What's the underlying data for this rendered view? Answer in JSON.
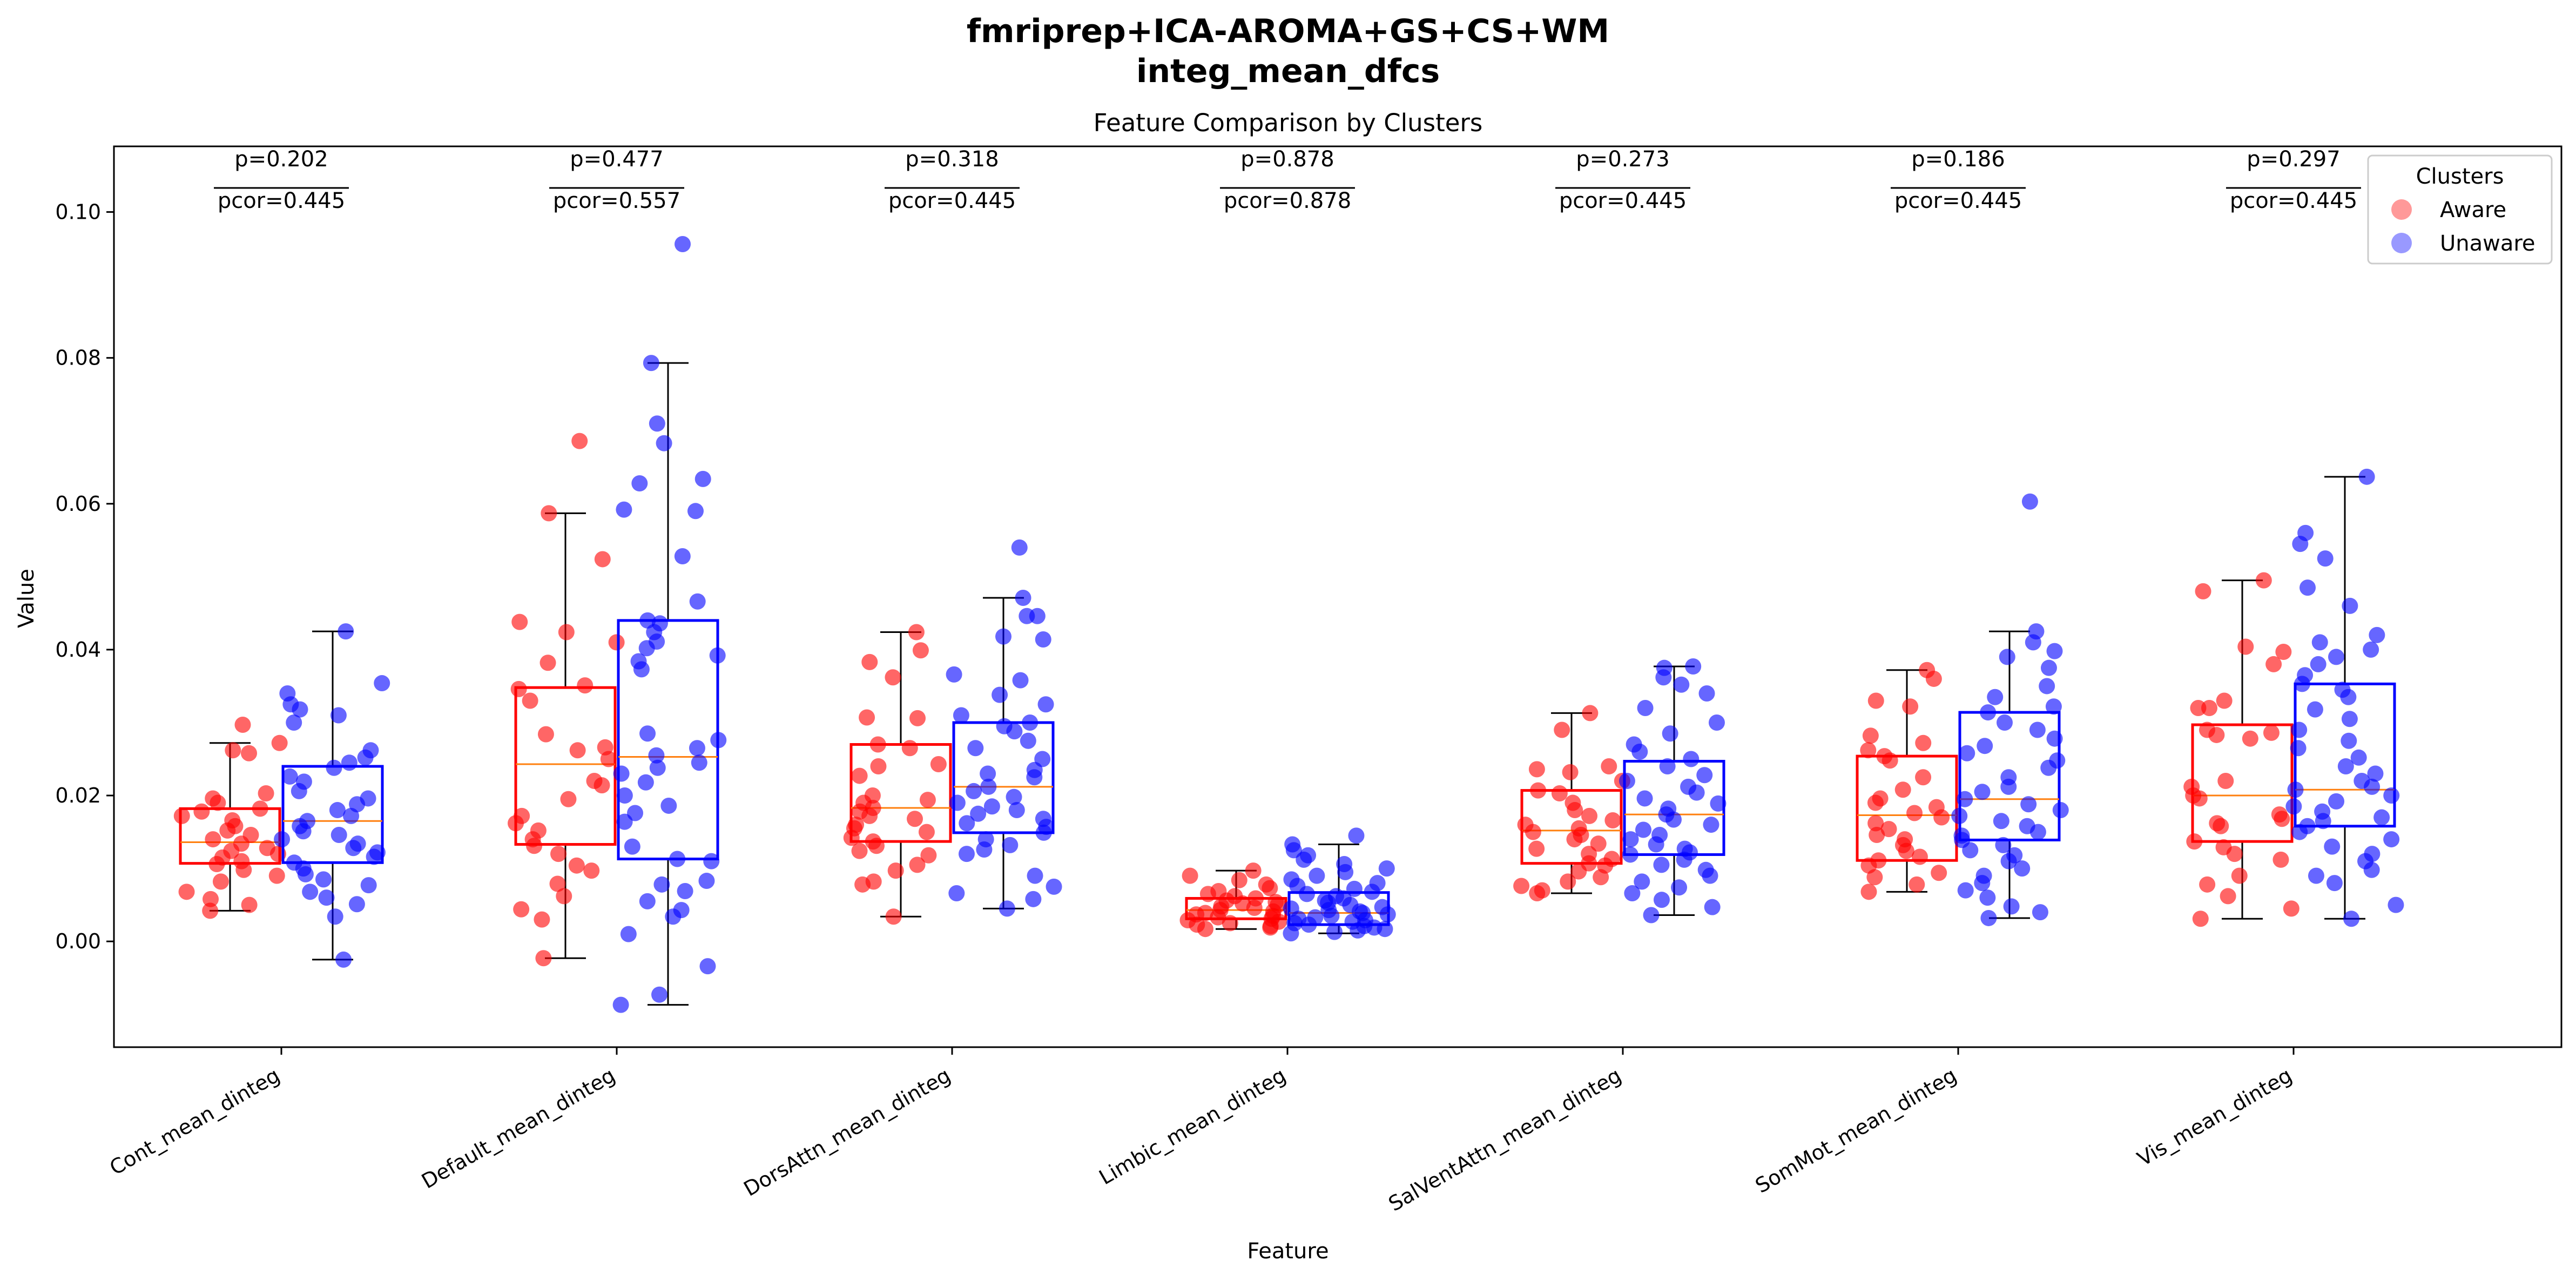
{
  "chart_data": {
    "type": "box",
    "suptitle": [
      "fmriprep+ICA-AROMA+GS+CS+WM",
      "integ_mean_dfcs"
    ],
    "title": "Feature Comparison by Clusters",
    "xlabel": "Feature",
    "ylabel": "Value",
    "ylim": [
      -0.0145,
      0.109
    ],
    "yticks": [
      0.0,
      0.02,
      0.04,
      0.06,
      0.08,
      0.1
    ],
    "yticklabels": [
      "0.00",
      "0.02",
      "0.04",
      "0.06",
      "0.08",
      "0.10"
    ],
    "grid": false,
    "legend": {
      "title": "Clusters",
      "position": "top-right",
      "entries": [
        "Aware",
        "Unaware"
      ]
    },
    "categories": [
      "Cont_mean_dinteg",
      "Default_mean_dinteg",
      "DorsAttn_mean_dinteg",
      "Limbic_mean_dinteg",
      "SalVentAttn_mean_dinteg",
      "SomMot_mean_dinteg",
      "Vis_mean_dinteg"
    ],
    "annotations": [
      {
        "p": "p=0.202",
        "pcor": "pcor=0.445"
      },
      {
        "p": "p=0.477",
        "pcor": "pcor=0.557"
      },
      {
        "p": "p=0.318",
        "pcor": "pcor=0.445"
      },
      {
        "p": "p=0.878",
        "pcor": "pcor=0.878"
      },
      {
        "p": "p=0.273",
        "pcor": "pcor=0.445"
      },
      {
        "p": "p=0.186",
        "pcor": "pcor=0.445"
      },
      {
        "p": "p=0.297",
        "pcor": "pcor=0.445"
      }
    ],
    "series": [
      {
        "name": "Aware",
        "color": "#ff0000",
        "boxes": [
          {
            "whislo": 0.0042,
            "q1": 0.0107,
            "med": 0.0136,
            "q3": 0.0182,
            "whishi": 0.0272
          },
          {
            "whislo": -0.0023,
            "q1": 0.0133,
            "med": 0.0243,
            "q3": 0.0348,
            "whishi": 0.0587
          },
          {
            "whislo": 0.0034,
            "q1": 0.0137,
            "med": 0.0183,
            "q3": 0.027,
            "whishi": 0.0424
          },
          {
            "whislo": 0.0017,
            "q1": 0.0031,
            "med": 0.0043,
            "q3": 0.0059,
            "whishi": 0.0097
          },
          {
            "whislo": 0.0066,
            "q1": 0.0107,
            "med": 0.0152,
            "q3": 0.0207,
            "whishi": 0.0313
          },
          {
            "whislo": 0.0068,
            "q1": 0.0111,
            "med": 0.0173,
            "q3": 0.0254,
            "whishi": 0.0372
          },
          {
            "whislo": 0.0031,
            "q1": 0.0137,
            "med": 0.02,
            "q3": 0.0297,
            "whishi": 0.0495
          }
        ],
        "points": [
          [
            0.0297,
            0.0272,
            0.0262,
            0.0258,
            0.0203,
            0.0196,
            0.019,
            0.0182,
            0.0178,
            0.0172,
            0.0166,
            0.0158,
            0.0152,
            0.0146,
            0.014,
            0.0134,
            0.0128,
            0.0124,
            0.012,
            0.0115,
            0.011,
            0.0106,
            0.0098,
            0.009,
            0.0082,
            0.0068,
            0.0058,
            0.005,
            0.0042
          ],
          [
            0.0686,
            0.0587,
            0.0524,
            0.0438,
            0.0424,
            0.041,
            0.0382,
            0.0351,
            0.0346,
            0.033,
            0.0284,
            0.0266,
            0.0262,
            0.025,
            0.022,
            0.0214,
            0.0195,
            0.0172,
            0.0162,
            0.0152,
            0.014,
            0.0131,
            0.012,
            0.0104,
            0.0097,
            0.0079,
            0.0062,
            0.0044,
            0.003,
            -0.0023
          ],
          [
            0.0424,
            0.0399,
            0.0383,
            0.0362,
            0.0307,
            0.0306,
            0.027,
            0.0265,
            0.0243,
            0.024,
            0.0227,
            0.02,
            0.0194,
            0.019,
            0.0183,
            0.0178,
            0.0172,
            0.0168,
            0.016,
            0.0155,
            0.015,
            0.0142,
            0.0137,
            0.0131,
            0.0124,
            0.0118,
            0.0105,
            0.0097,
            0.0082,
            0.0078,
            0.0034
          ],
          [
            0.0097,
            0.009,
            0.0084,
            0.0078,
            0.0073,
            0.0069,
            0.0065,
            0.0062,
            0.0059,
            0.0056,
            0.0054,
            0.0052,
            0.005,
            0.0048,
            0.0046,
            0.0043,
            0.0041,
            0.0039,
            0.0037,
            0.0035,
            0.0033,
            0.0031,
            0.0029,
            0.0027,
            0.0025,
            0.0023,
            0.0021,
            0.0019,
            0.0017
          ],
          [
            0.0313,
            0.029,
            0.024,
            0.0236,
            0.0232,
            0.022,
            0.0207,
            0.0203,
            0.019,
            0.018,
            0.0172,
            0.0166,
            0.016,
            0.0155,
            0.015,
            0.0146,
            0.014,
            0.0134,
            0.0127,
            0.012,
            0.0113,
            0.0107,
            0.0104,
            0.0096,
            0.0088,
            0.0082,
            0.0076,
            0.007,
            0.0066
          ],
          [
            0.0372,
            0.036,
            0.033,
            0.0322,
            0.0282,
            0.0272,
            0.0262,
            0.0254,
            0.0248,
            0.0225,
            0.0208,
            0.0196,
            0.019,
            0.0184,
            0.0176,
            0.017,
            0.0162,
            0.0154,
            0.0146,
            0.014,
            0.0132,
            0.0124,
            0.0116,
            0.0111,
            0.0104,
            0.0094,
            0.0088,
            0.0078,
            0.0068
          ],
          [
            0.0495,
            0.048,
            0.0404,
            0.0397,
            0.038,
            0.033,
            0.032,
            0.032,
            0.029,
            0.0286,
            0.0283,
            0.0278,
            0.022,
            0.0212,
            0.02,
            0.0196,
            0.0174,
            0.0168,
            0.0162,
            0.0158,
            0.0137,
            0.0129,
            0.012,
            0.0112,
            0.009,
            0.0078,
            0.0062,
            0.0045,
            0.0031
          ]
        ]
      },
      {
        "name": "Unaware",
        "color": "#0000ff",
        "boxes": [
          {
            "whislo": -0.0025,
            "q1": 0.0108,
            "med": 0.0165,
            "q3": 0.024,
            "whishi": 0.0425
          },
          {
            "whislo": -0.0087,
            "q1": 0.0113,
            "med": 0.0253,
            "q3": 0.044,
            "whishi": 0.0793
          },
          {
            "whislo": 0.0045,
            "q1": 0.0149,
            "med": 0.0212,
            "q3": 0.03,
            "whishi": 0.0471
          },
          {
            "whislo": 0.0011,
            "q1": 0.0023,
            "med": 0.0039,
            "q3": 0.0067,
            "whishi": 0.0133
          },
          {
            "whislo": 0.0036,
            "q1": 0.0119,
            "med": 0.0174,
            "q3": 0.0247,
            "whishi": 0.0377
          },
          {
            "whislo": 0.0032,
            "q1": 0.0139,
            "med": 0.0195,
            "q3": 0.0314,
            "whishi": 0.0425
          },
          {
            "whislo": 0.0031,
            "q1": 0.0158,
            "med": 0.0208,
            "q3": 0.0353,
            "whishi": 0.0637
          }
        ],
        "points": [
          [
            0.0425,
            0.0354,
            0.034,
            0.0325,
            0.0318,
            0.031,
            0.03,
            0.0262,
            0.0252,
            0.0245,
            0.0238,
            0.0226,
            0.0219,
            0.0206,
            0.0196,
            0.0188,
            0.018,
            0.0172,
            0.0165,
            0.0158,
            0.0151,
            0.0146,
            0.014,
            0.0134,
            0.0128,
            0.0122,
            0.0116,
            0.0108,
            0.01,
            0.0092,
            0.0085,
            0.0077,
            0.0068,
            0.006,
            0.0051,
            0.0034,
            -0.0025
          ],
          [
            0.0956,
            0.0793,
            0.071,
            0.0683,
            0.0634,
            0.0628,
            0.0592,
            0.059,
            0.0528,
            0.0466,
            0.044,
            0.0436,
            0.0424,
            0.0411,
            0.0402,
            0.0392,
            0.0384,
            0.0373,
            0.0285,
            0.0276,
            0.0265,
            0.0255,
            0.0245,
            0.0238,
            0.023,
            0.0218,
            0.02,
            0.0186,
            0.0176,
            0.0164,
            0.013,
            0.0113,
            0.011,
            0.0083,
            0.0078,
            0.0069,
            0.0055,
            0.0043,
            0.0034,
            0.001,
            -0.0034,
            -0.0073,
            -0.0087
          ],
          [
            0.054,
            0.0471,
            0.0446,
            0.0446,
            0.0418,
            0.0414,
            0.0366,
            0.0358,
            0.0338,
            0.0325,
            0.031,
            0.03,
            0.0295,
            0.0288,
            0.0275,
            0.0265,
            0.025,
            0.0235,
            0.023,
            0.0225,
            0.0212,
            0.0206,
            0.0198,
            0.019,
            0.0185,
            0.018,
            0.0175,
            0.0168,
            0.0162,
            0.0157,
            0.0149,
            0.014,
            0.0132,
            0.0126,
            0.012,
            0.009,
            0.0075,
            0.0066,
            0.0058,
            0.0045
          ],
          [
            0.0145,
            0.0133,
            0.0125,
            0.0118,
            0.0112,
            0.0106,
            0.01,
            0.0095,
            0.009,
            0.0085,
            0.008,
            0.0076,
            0.0072,
            0.0068,
            0.0065,
            0.0062,
            0.0059,
            0.0056,
            0.0053,
            0.005,
            0.0047,
            0.0045,
            0.0043,
            0.0041,
            0.0039,
            0.0037,
            0.0035,
            0.0033,
            0.0031,
            0.0029,
            0.0027,
            0.0025,
            0.0023,
            0.0021,
            0.0019,
            0.0017,
            0.0015,
            0.0013,
            0.0011
          ],
          [
            0.0377,
            0.0375,
            0.0362,
            0.0352,
            0.034,
            0.032,
            0.03,
            0.0285,
            0.027,
            0.026,
            0.025,
            0.024,
            0.0228,
            0.022,
            0.0212,
            0.0204,
            0.0196,
            0.0189,
            0.0182,
            0.0174,
            0.0167,
            0.016,
            0.0153,
            0.0146,
            0.014,
            0.0133,
            0.0127,
            0.0122,
            0.0119,
            0.0112,
            0.0105,
            0.0098,
            0.009,
            0.0082,
            0.0074,
            0.0066,
            0.0057,
            0.0047,
            0.0036
          ],
          [
            0.0603,
            0.0425,
            0.041,
            0.0398,
            0.039,
            0.0375,
            0.035,
            0.0335,
            0.0322,
            0.0314,
            0.03,
            0.029,
            0.0278,
            0.0268,
            0.0258,
            0.0248,
            0.0238,
            0.0225,
            0.0212,
            0.0205,
            0.0195,
            0.0188,
            0.018,
            0.0172,
            0.0165,
            0.0158,
            0.015,
            0.0145,
            0.0139,
            0.0132,
            0.0125,
            0.0118,
            0.011,
            0.01,
            0.009,
            0.008,
            0.007,
            0.006,
            0.0048,
            0.004,
            0.0032
          ],
          [
            0.0637,
            0.056,
            0.0545,
            0.0525,
            0.0485,
            0.046,
            0.042,
            0.041,
            0.04,
            0.039,
            0.038,
            0.0365,
            0.0353,
            0.0345,
            0.0335,
            0.0318,
            0.0305,
            0.029,
            0.0275,
            0.0265,
            0.0252,
            0.024,
            0.023,
            0.022,
            0.0212,
            0.0208,
            0.02,
            0.0192,
            0.0185,
            0.0178,
            0.017,
            0.0165,
            0.0158,
            0.015,
            0.014,
            0.013,
            0.012,
            0.011,
            0.0098,
            0.009,
            0.008,
            0.005,
            0.0031
          ]
        ]
      }
    ],
    "median_color": "#ff7f0e",
    "whisker_color": "#000000"
  }
}
